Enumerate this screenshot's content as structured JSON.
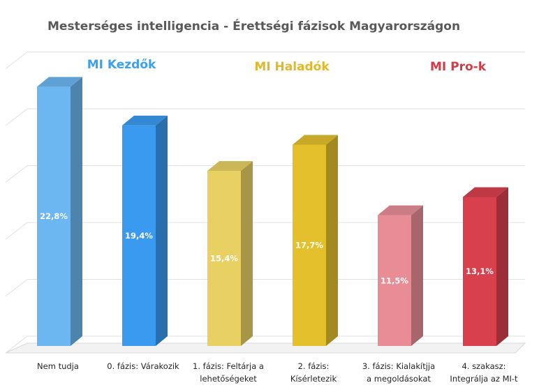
{
  "chart_data": {
    "type": "bar",
    "title": "Mesterséges intelligencia - Érettségi fázisok Magyarországon",
    "categories": [
      [
        "Nem tudja"
      ],
      [
        "0. fázis: Várakozik"
      ],
      [
        "1. fázis: Feltárja a",
        "lehetőségeket"
      ],
      [
        "2. fázis:",
        "Kísérletezik"
      ],
      [
        "3. fázis: Kialakítjja",
        "a megoldásokat"
      ],
      [
        "4. szakasz:",
        "Integrálja az MI-t"
      ]
    ],
    "values": [
      22.8,
      19.4,
      15.4,
      17.7,
      11.5,
      13.1
    ],
    "value_labels": [
      "22,8%",
      "19,4%",
      "15,4%",
      "17,7%",
      "11,5%",
      "13,1%"
    ],
    "bar_colors": [
      "#6cb6f2",
      "#3a9af0",
      "#e8d062",
      "#e3c02c",
      "#e88d96",
      "#d8404e"
    ],
    "groups": [
      {
        "label": "MI Kezdők",
        "color": "#3aa0f0"
      },
      {
        "label": "MI Haladók",
        "color": "#e0b82a"
      },
      {
        "label": "MI Pro-k",
        "color": "#d53b47"
      }
    ],
    "ylim": [
      0,
      25
    ],
    "grid": true,
    "xlabel": "",
    "ylabel": ""
  }
}
